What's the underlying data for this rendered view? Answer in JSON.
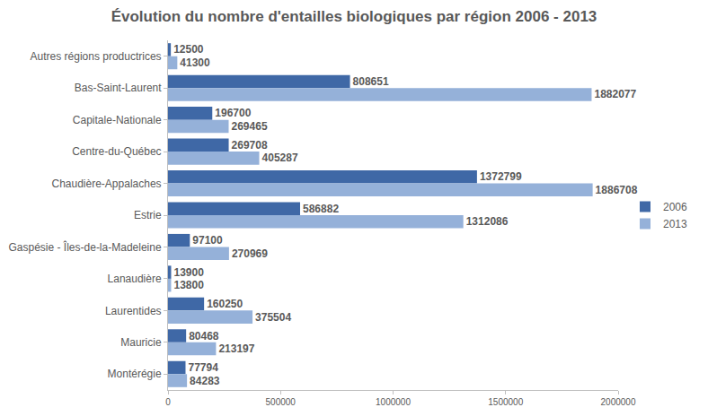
{
  "chart_data": {
    "type": "bar",
    "title": "Évolution du nombre d'entailles biologiques par région 2006 - 2013",
    "orientation": "horizontal",
    "categories": [
      "Autres régions productrices",
      "Bas-Saint-Laurent",
      "Capitale-Nationale",
      "Centre-du-Québec",
      "Chaudière-Appalaches",
      "Estrie",
      "Gaspésie - Îles-de-la-Madeleine",
      "Lanaudière",
      "Laurentides",
      "Mauricie",
      "Montérégie"
    ],
    "series": [
      {
        "name": "2006",
        "color": "#3f68a6",
        "values": [
          12500,
          808651,
          196700,
          269708,
          1372799,
          586882,
          97100,
          13900,
          160250,
          80468,
          77794
        ]
      },
      {
        "name": "2013",
        "color": "#95b1d9",
        "values": [
          41300,
          1882077,
          269465,
          405287,
          1886708,
          1312086,
          270969,
          13800,
          375504,
          213197,
          84283
        ]
      }
    ],
    "xlim": [
      0,
      2000000
    ],
    "xticks": [
      0,
      500000,
      1000000,
      1500000,
      2000000
    ],
    "grid": false,
    "legend": "right",
    "data_labels": true
  }
}
